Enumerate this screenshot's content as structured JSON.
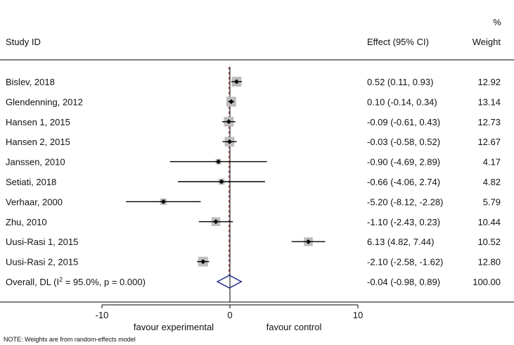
{
  "chart_data": {
    "type": "forest",
    "header": {
      "study": "Study ID",
      "effect": "Effect (95% CI)",
      "weight_pct": "%",
      "weight": "Weight"
    },
    "studies": [
      {
        "label": "Bislev, 2018",
        "es": 0.52,
        "lo": 0.11,
        "hi": 0.93,
        "weight": 12.92,
        "ci_text": "0.52 (0.11, 0.93)",
        "weight_text": "12.92"
      },
      {
        "label": "Glendenning,  2012",
        "es": 0.1,
        "lo": -0.14,
        "hi": 0.34,
        "weight": 13.14,
        "ci_text": "0.10 (-0.14, 0.34)",
        "weight_text": "13.14"
      },
      {
        "label": "Hansen 1, 2015",
        "es": -0.09,
        "lo": -0.61,
        "hi": 0.43,
        "weight": 12.73,
        "ci_text": "-0.09 (-0.61, 0.43)",
        "weight_text": "12.73"
      },
      {
        "label": "Hansen 2, 2015",
        "es": -0.03,
        "lo": -0.58,
        "hi": 0.52,
        "weight": 12.67,
        "ci_text": "-0.03 (-0.58, 0.52)",
        "weight_text": "12.67"
      },
      {
        "label": "Janssen, 2010",
        "es": -0.9,
        "lo": -4.69,
        "hi": 2.89,
        "weight": 4.17,
        "ci_text": "-0.90 (-4.69, 2.89)",
        "weight_text": "4.17"
      },
      {
        "label": "Setiati, 2018",
        "es": -0.66,
        "lo": -4.06,
        "hi": 2.74,
        "weight": 4.82,
        "ci_text": "-0.66 (-4.06, 2.74)",
        "weight_text": "4.82"
      },
      {
        "label": "Verhaar, 2000",
        "es": -5.2,
        "lo": -8.12,
        "hi": -2.28,
        "weight": 5.79,
        "ci_text": "-5.20 (-8.12, -2.28)",
        "weight_text": "5.79"
      },
      {
        "label": "Zhu, 2010",
        "es": -1.1,
        "lo": -2.43,
        "hi": 0.23,
        "weight": 10.44,
        "ci_text": "-1.10 (-2.43, 0.23)",
        "weight_text": "10.44"
      },
      {
        "label": "Uusi-Rasi 1, 2015",
        "es": 6.13,
        "lo": 4.82,
        "hi": 7.44,
        "weight": 10.52,
        "ci_text": "6.13 (4.82, 7.44)",
        "weight_text": "10.52"
      },
      {
        "label": "Uusi-Rasi 2, 2015",
        "es": -2.1,
        "lo": -2.58,
        "hi": -1.62,
        "weight": 12.8,
        "ci_text": "-2.10 (-2.58, -1.62)",
        "weight_text": "12.80"
      }
    ],
    "overall": {
      "label_prefix": "Overall, DL (I",
      "label_sup": "2",
      "label_suffix": " = 95.0%, p = 0.000)",
      "es": -0.04,
      "lo": -0.98,
      "hi": 0.89,
      "ci_text": "-0.04 (-0.98, 0.89)",
      "weight_text": "100.00"
    },
    "xlim": [
      -10,
      10
    ],
    "ticks": [
      -10,
      0,
      10
    ],
    "tick_labels": [
      "-10",
      "0",
      "10"
    ],
    "null_line": 0,
    "xlabel_left": "favour experimental",
    "xlabel_right": "favour control",
    "note": "NOTE: Weights are from random-effects model",
    "colors": {
      "ci_line": "#000000",
      "box": "#bdbdbd",
      "point": "#000000",
      "overall_diamond": "#1f2f87",
      "null_line": "#000000",
      "effect_line": "#8b1a1a"
    }
  }
}
